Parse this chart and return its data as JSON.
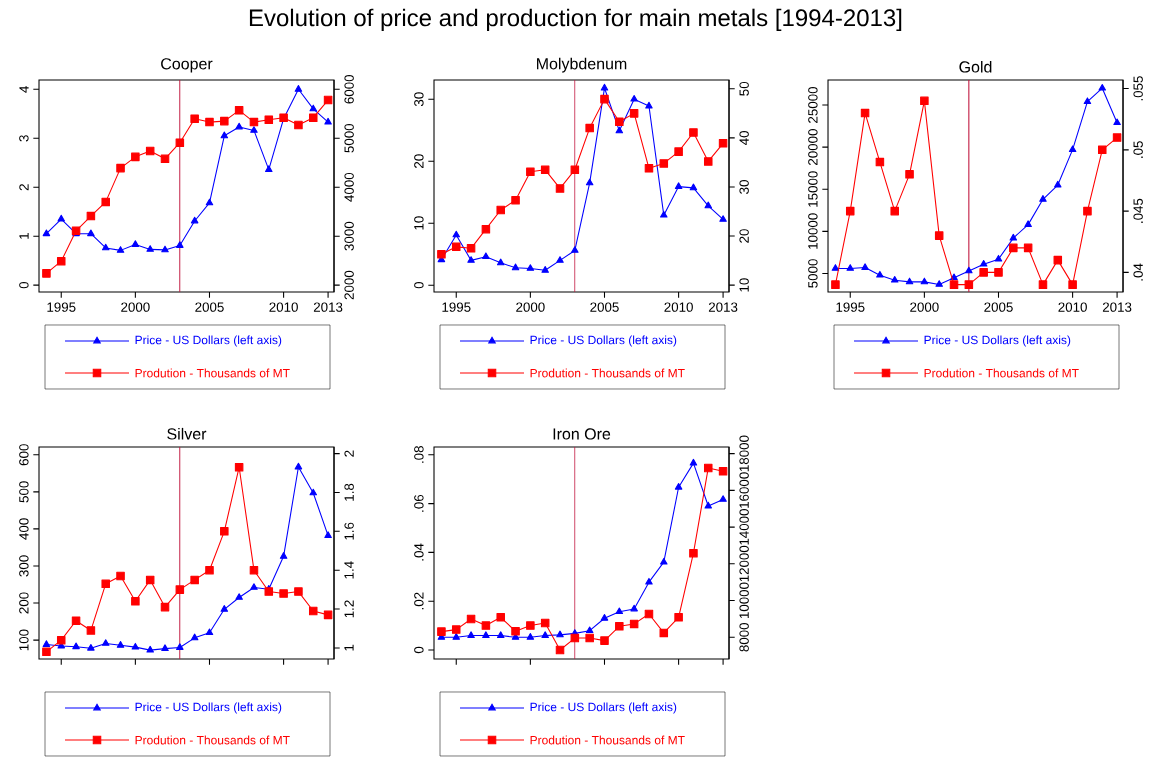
{
  "chart_data": [
    {
      "type": "line",
      "title": "Cooper",
      "annotations": [
        "Evolution of price and production for main metals [1994-2013]"
      ],
      "x": [
        1994,
        1995,
        1996,
        1997,
        1998,
        1999,
        2000,
        2001,
        2002,
        2003,
        2004,
        2005,
        2006,
        2007,
        2008,
        2009,
        2010,
        2011,
        2012,
        2013
      ],
      "xlim": [
        1993.5,
        2013.4
      ],
      "xticks": [
        1995,
        2000,
        2005,
        2010,
        2013
      ],
      "ylim": [
        -0.14,
        4.19
      ],
      "yticks": [
        0,
        1,
        2,
        3,
        4
      ],
      "y2lim": [
        1860,
        6190
      ],
      "y2ticks": [
        2000,
        3000,
        4000,
        5000,
        6000
      ],
      "legend": "bottom",
      "ref_lines": [
        {
          "axis": "x",
          "value": 2003,
          "color": "#c0143c"
        }
      ],
      "series": [
        {
          "name": "Price - US Dollars (left axis)",
          "color": "#0000ff",
          "marker": "triangle",
          "values": [
            1.05,
            1.35,
            1.05,
            1.05,
            0.76,
            0.71,
            0.83,
            0.73,
            0.72,
            0.81,
            1.31,
            1.68,
            3.05,
            3.23,
            3.16,
            2.36,
            3.4,
            4.0,
            3.6,
            3.33
          ]
        },
        {
          "name": "Prodution - Thousands of MT",
          "color": "#ff0000",
          "marker": "square",
          "axis": "y2",
          "values": [
            2240,
            2490,
            3110,
            3410,
            3700,
            4390,
            4620,
            4740,
            4580,
            4910,
            5400,
            5330,
            5350,
            5570,
            5330,
            5380,
            5420,
            5270,
            5420,
            5780
          ]
        }
      ]
    },
    {
      "type": "line",
      "title": "Molybdenum",
      "x": [
        1994,
        1995,
        1996,
        1997,
        1998,
        1999,
        2000,
        2001,
        2002,
        2003,
        2004,
        2005,
        2006,
        2007,
        2008,
        2009,
        2010,
        2011,
        2012,
        2013
      ],
      "xlim": [
        1993.5,
        2013.4
      ],
      "xticks": [
        1995,
        2000,
        2005,
        2010,
        2013
      ],
      "ylim": [
        -1.1,
        33.1
      ],
      "yticks": [
        0,
        10,
        20,
        30
      ],
      "y2lim": [
        8.6,
        51.8
      ],
      "y2ticks": [
        10,
        20,
        30,
        40,
        50
      ],
      "legend": "bottom",
      "ref_lines": [
        {
          "axis": "x",
          "value": 2003,
          "color": "#c0143c"
        }
      ],
      "series": [
        {
          "name": "Price - US Dollars (left axis)",
          "color": "#0000ff",
          "marker": "triangle",
          "values": [
            4.1,
            8.1,
            4.0,
            4.6,
            3.6,
            2.8,
            2.7,
            2.4,
            4.0,
            5.6,
            16.5,
            31.8,
            24.9,
            30.0,
            28.9,
            11.3,
            15.9,
            15.7,
            12.8,
            10.6
          ]
        },
        {
          "name": "Prodution - Thousands of MT",
          "color": "#ff0000",
          "marker": "square",
          "axis": "y2",
          "values": [
            16.3,
            17.8,
            17.5,
            21.4,
            25.3,
            27.3,
            33.1,
            33.5,
            29.7,
            33.5,
            42.0,
            47.9,
            43.3,
            45.0,
            33.8,
            34.8,
            37.2,
            41.1,
            35.2,
            38.9
          ]
        }
      ]
    },
    {
      "type": "line",
      "title": "Gold",
      "x": [
        1994,
        1995,
        1996,
        1997,
        1998,
        1999,
        2000,
        2001,
        2002,
        2003,
        2004,
        2005,
        2006,
        2007,
        2008,
        2009,
        2010,
        2011,
        2012,
        2013
      ],
      "xlim": [
        1993.5,
        2013.4
      ],
      "xticks": [
        1995,
        2000,
        2005,
        2010,
        2013
      ],
      "ylim": [
        2800,
        27970
      ],
      "yticks": [
        5000,
        10000,
        15000,
        20000,
        25000
      ],
      "y2lim": [
        0.0384,
        0.0557
      ],
      "y2ticks": [
        {
          "value": 0.04,
          "label": ".04"
        },
        {
          "value": 0.045,
          "label": ".045"
        },
        {
          "value": 0.05,
          "label": ".05"
        },
        {
          "value": 0.055,
          "label": ".055"
        }
      ],
      "legend": "bottom",
      "ref_lines": [
        {
          "axis": "x",
          "value": 2003,
          "color": "#c0143c"
        }
      ],
      "series": [
        {
          "name": "Price - US Dollars (left axis)",
          "color": "#0000ff",
          "marker": "triangle",
          "values": [
            5600,
            5600,
            5700,
            4800,
            4200,
            4000,
            4000,
            3700,
            4500,
            5300,
            6100,
            6700,
            9200,
            10800,
            13800,
            15500,
            19700,
            25400,
            27000,
            22900
          ]
        },
        {
          "name": "Prodution - Thousands of MT",
          "color": "#ff0000",
          "marker": "square",
          "axis": "y2",
          "values": [
            0.039,
            0.045,
            0.053,
            0.049,
            0.045,
            0.048,
            0.054,
            0.043,
            0.039,
            0.039,
            0.04,
            0.04,
            0.042,
            0.042,
            0.039,
            0.041,
            0.039,
            0.045,
            0.05,
            0.051
          ]
        }
      ]
    },
    {
      "type": "line",
      "title": "Silver",
      "x": [
        1994,
        1995,
        1996,
        1997,
        1998,
        1999,
        2000,
        2001,
        2002,
        2003,
        2004,
        2005,
        2006,
        2007,
        2008,
        2009,
        2010,
        2011,
        2012,
        2013
      ],
      "xlim": [
        1993.5,
        2013.4
      ],
      "xticks": [
        {
          "value": 1995,
          "label": null
        },
        {
          "value": 2000,
          "label": null
        },
        {
          "value": 2005,
          "label": null
        },
        {
          "value": 2010,
          "label": null
        },
        {
          "value": 2013,
          "label": null
        }
      ],
      "tick_labels": "y",
      "ylim": [
        49,
        621
      ],
      "yticks": [
        100,
        200,
        300,
        400,
        500,
        600
      ],
      "y2lim": [
        0.943,
        2.034
      ],
      "y2ticks": [
        1,
        1.2,
        1.4,
        1.6,
        1.8,
        2
      ],
      "legend": "bottom",
      "ref_lines": [
        {
          "axis": "x",
          "value": 2003,
          "color": "#c0143c"
        }
      ],
      "series": [
        {
          "name": "Price - US Dollars (left axis)",
          "color": "#0000ff",
          "marker": "triangle",
          "values": [
            88,
            84,
            82,
            78,
            91,
            86,
            81,
            73,
            77,
            80,
            106,
            120,
            183,
            215,
            242,
            237,
            326,
            567,
            497,
            382
          ]
        },
        {
          "name": "Prodution - Thousands of MT",
          "color": "#ff0000",
          "marker": "square",
          "axis": "y2",
          "values": [
            0.98,
            1.04,
            1.14,
            1.09,
            1.33,
            1.37,
            1.24,
            1.35,
            1.21,
            1.3,
            1.35,
            1.4,
            1.6,
            1.93,
            1.4,
            1.29,
            1.28,
            1.29,
            1.19,
            1.17
          ]
        }
      ]
    },
    {
      "type": "line",
      "title": "Iron Ore",
      "x": [
        1994,
        1995,
        1996,
        1997,
        1998,
        1999,
        2000,
        2001,
        2002,
        2003,
        2004,
        2005,
        2006,
        2007,
        2008,
        2009,
        2010,
        2011,
        2012,
        2013
      ],
      "xlim": [
        1993.5,
        2013.4
      ],
      "xticks": [
        {
          "value": 1995,
          "label": null
        },
        {
          "value": 2000,
          "label": null
        },
        {
          "value": 2005,
          "label": null
        },
        {
          "value": 2010,
          "label": null
        },
        {
          "value": 2013,
          "label": null
        }
      ],
      "tick_labels": "y",
      "ylim": [
        -0.0037,
        0.0832
      ],
      "yticks": [
        0,
        {
          "value": 0.02,
          "label": ".02"
        },
        {
          "value": 0.04,
          "label": ".04"
        },
        {
          "value": 0.06,
          "label": ".06"
        },
        {
          "value": 0.08,
          "label": ".08"
        }
      ],
      "y2lim": [
        6820,
        18360
      ],
      "y2ticks": [
        8000,
        10000,
        12000,
        14000,
        16000,
        18000
      ],
      "legend": "bottom",
      "ref_lines": [
        {
          "axis": "x",
          "value": 2003,
          "color": "#c0143c"
        }
      ],
      "series": [
        {
          "name": "Price - US Dollars (left axis)",
          "color": "#0000ff",
          "marker": "triangle",
          "values": [
            0.0052,
            0.0052,
            0.0059,
            0.0059,
            0.0059,
            0.0052,
            0.0052,
            0.0059,
            0.0062,
            0.0068,
            0.0079,
            0.013,
            0.0157,
            0.0168,
            0.0278,
            0.036,
            0.0667,
            0.0766,
            0.059,
            0.0617
          ]
        },
        {
          "name": "Prodution - Thousands of MT",
          "color": "#ff0000",
          "marker": "square",
          "axis": "y2",
          "values": [
            8310,
            8420,
            9000,
            8640,
            9090,
            8330,
            8640,
            8780,
            7310,
            7960,
            7960,
            7820,
            8600,
            8730,
            9270,
            8240,
            9090,
            12580,
            17220,
            17040
          ]
        }
      ]
    }
  ]
}
